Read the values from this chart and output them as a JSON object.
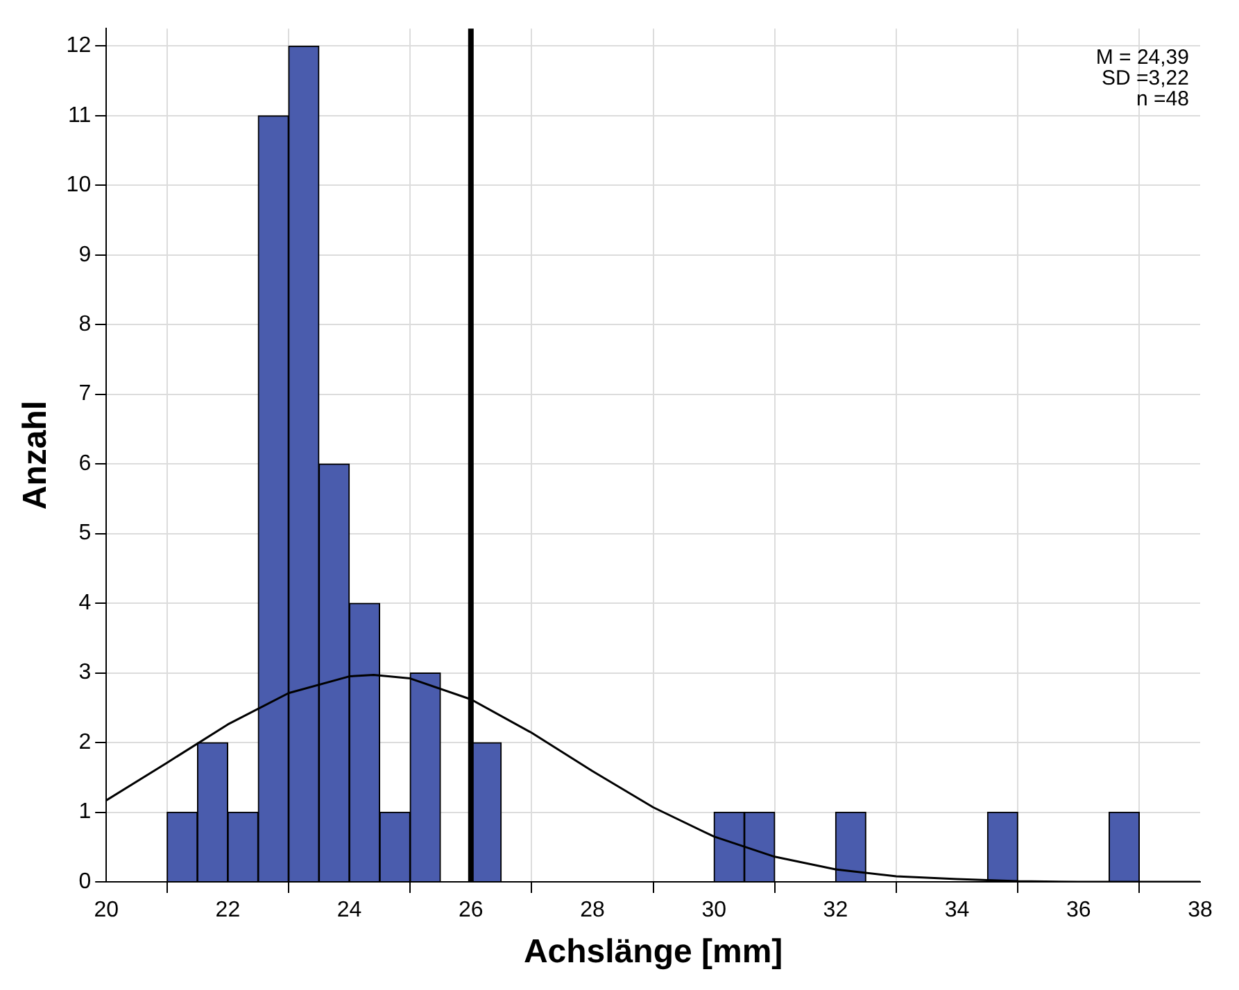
{
  "chart_data": {
    "type": "histogram",
    "xlabel": "Achslänge [mm]",
    "ylabel": "Anzahl",
    "bins": [
      21,
      21.5,
      22,
      22.5,
      23,
      23.5,
      24,
      24.5,
      25,
      25.5,
      26,
      26.5,
      27,
      27.5,
      28,
      28.5,
      29,
      29.5,
      30,
      30.5,
      31,
      31.5,
      32,
      32.5,
      33,
      33.5,
      34,
      34.5,
      35,
      35.5,
      36,
      36.5,
      37
    ],
    "values": [
      1,
      2,
      1,
      11,
      12,
      6,
      4,
      1,
      3,
      0,
      2,
      0,
      0,
      0,
      0,
      0,
      0,
      0,
      1,
      1,
      0,
      0,
      1,
      0,
      0,
      0,
      0,
      1,
      0,
      0,
      0,
      1
    ],
    "color": "#4a5cad",
    "series": [
      {
        "type": "line",
        "color": "#000000",
        "x": [
          20,
          21,
          22,
          23,
          24,
          24.4,
          25,
          26,
          27,
          28,
          29,
          30,
          31,
          32,
          33,
          34,
          35,
          36,
          37,
          38
        ],
        "values": [
          1.17,
          1.71,
          2.26,
          2.71,
          2.95,
          2.97,
          2.92,
          2.62,
          2.14,
          1.59,
          1.07,
          0.65,
          0.36,
          0.18,
          0.08,
          0.04,
          0.01,
          0,
          0,
          0
        ]
      }
    ],
    "xlim": [
      20,
      38
    ],
    "xticks": [
      20,
      22,
      24,
      26,
      28,
      30,
      32,
      34,
      36,
      38
    ],
    "ylim": [
      0,
      12.25
    ],
    "yticks": [
      0,
      1,
      2,
      3,
      4,
      5,
      6,
      7,
      8,
      9,
      10,
      11,
      12
    ],
    "grid": true,
    "ref_lines": [
      {
        "axis": "x",
        "value": 26,
        "color": "#000000"
      }
    ],
    "annotations": [
      "M = 24,39",
      "SD =3,22",
      "n =48"
    ]
  }
}
